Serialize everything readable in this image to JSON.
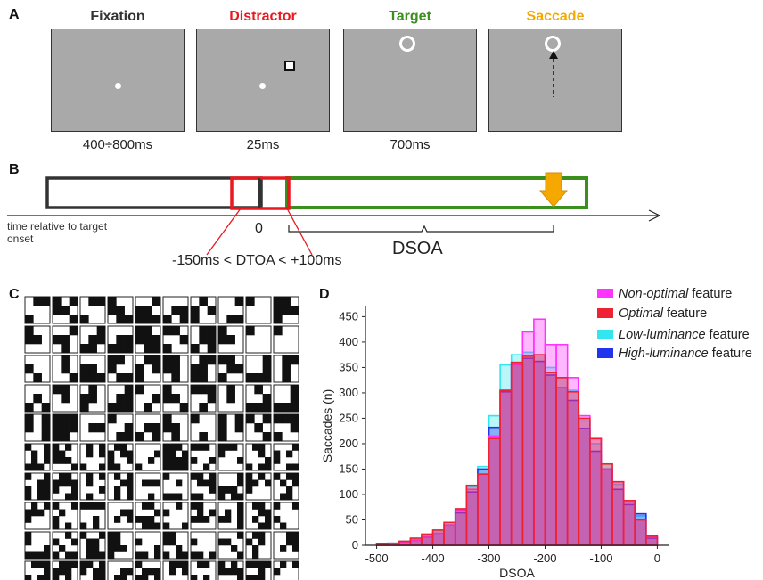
{
  "panel_a": {
    "label": "A",
    "screens": [
      {
        "title": "Fixation",
        "duration": "400÷800ms",
        "title_color": "#333333"
      },
      {
        "title": "Distractor",
        "duration": "25ms",
        "title_color": "#e8191f"
      },
      {
        "title": "Target",
        "duration": "700ms",
        "title_color": "#3a8f1e"
      },
      {
        "title": "Saccade",
        "duration": "",
        "title_color": "#f5a800"
      }
    ]
  },
  "panel_b": {
    "label": "B",
    "axis_caption": "time relative to target onset",
    "zero_label": "0",
    "dsoa_label": "DSOA",
    "dtoa_label": "-150ms < DTOA < +100ms"
  },
  "panel_c": {
    "label": "C"
  },
  "panel_d": {
    "label": "D"
  },
  "chart_data": {
    "type": "bar",
    "xlabel": "DSOA",
    "ylabel": "Saccades (n)",
    "xlim": [
      -520,
      20
    ],
    "ylim": [
      0,
      470
    ],
    "xticks": [
      -500,
      -400,
      -300,
      -200,
      -100,
      0
    ],
    "yticks": [
      0,
      50,
      100,
      150,
      200,
      250,
      300,
      350,
      400,
      450
    ],
    "bin_starts": [
      -500,
      -480,
      -460,
      -440,
      -420,
      -400,
      -380,
      -360,
      -340,
      -320,
      -300,
      -280,
      -260,
      -240,
      -220,
      -200,
      -180,
      -160,
      -140,
      -120,
      -100,
      -80,
      -60,
      -40,
      -20
    ],
    "bin_width": 20,
    "legend_position": "top-right",
    "legend": [
      {
        "italic": "Non-optimal",
        "rest": " feature",
        "color": "#ff33ff"
      },
      {
        "italic": "Optimal",
        "rest": " feature",
        "color": "#ee2233"
      },
      {
        "italic": "Low-luminance",
        "rest": " feature",
        "color": "#33e5ee"
      },
      {
        "italic": "High-luminance",
        "rest": " feature",
        "color": "#2233ee"
      }
    ],
    "series": [
      {
        "name": "Low-luminance feature",
        "color": "#33e5ee",
        "values": [
          2,
          4,
          8,
          12,
          18,
          28,
          45,
          70,
          115,
          155,
          255,
          355,
          375,
          380,
          375,
          350,
          330,
          305,
          245,
          200,
          160,
          120,
          85,
          58,
          15
        ]
      },
      {
        "name": "High-luminance feature",
        "color": "#2233ee",
        "values": [
          2,
          4,
          6,
          10,
          16,
          24,
          40,
          64,
          105,
          150,
          232,
          302,
          360,
          368,
          362,
          335,
          310,
          285,
          230,
          185,
          150,
          110,
          80,
          62,
          14
        ]
      },
      {
        "name": "Non-optimal feature",
        "color": "#ff33ff",
        "values": [
          1,
          3,
          6,
          10,
          16,
          24,
          40,
          70,
          110,
          140,
          215,
          305,
          355,
          420,
          445,
          395,
          395,
          330,
          255,
          210,
          150,
          125,
          85,
          50,
          16
        ]
      },
      {
        "name": "Optimal feature",
        "color": "#ee2233",
        "values": [
          1,
          4,
          8,
          14,
          22,
          30,
          45,
          72,
          118,
          140,
          210,
          305,
          360,
          372,
          375,
          340,
          330,
          302,
          250,
          210,
          160,
          125,
          88,
          50,
          18
        ]
      }
    ]
  }
}
